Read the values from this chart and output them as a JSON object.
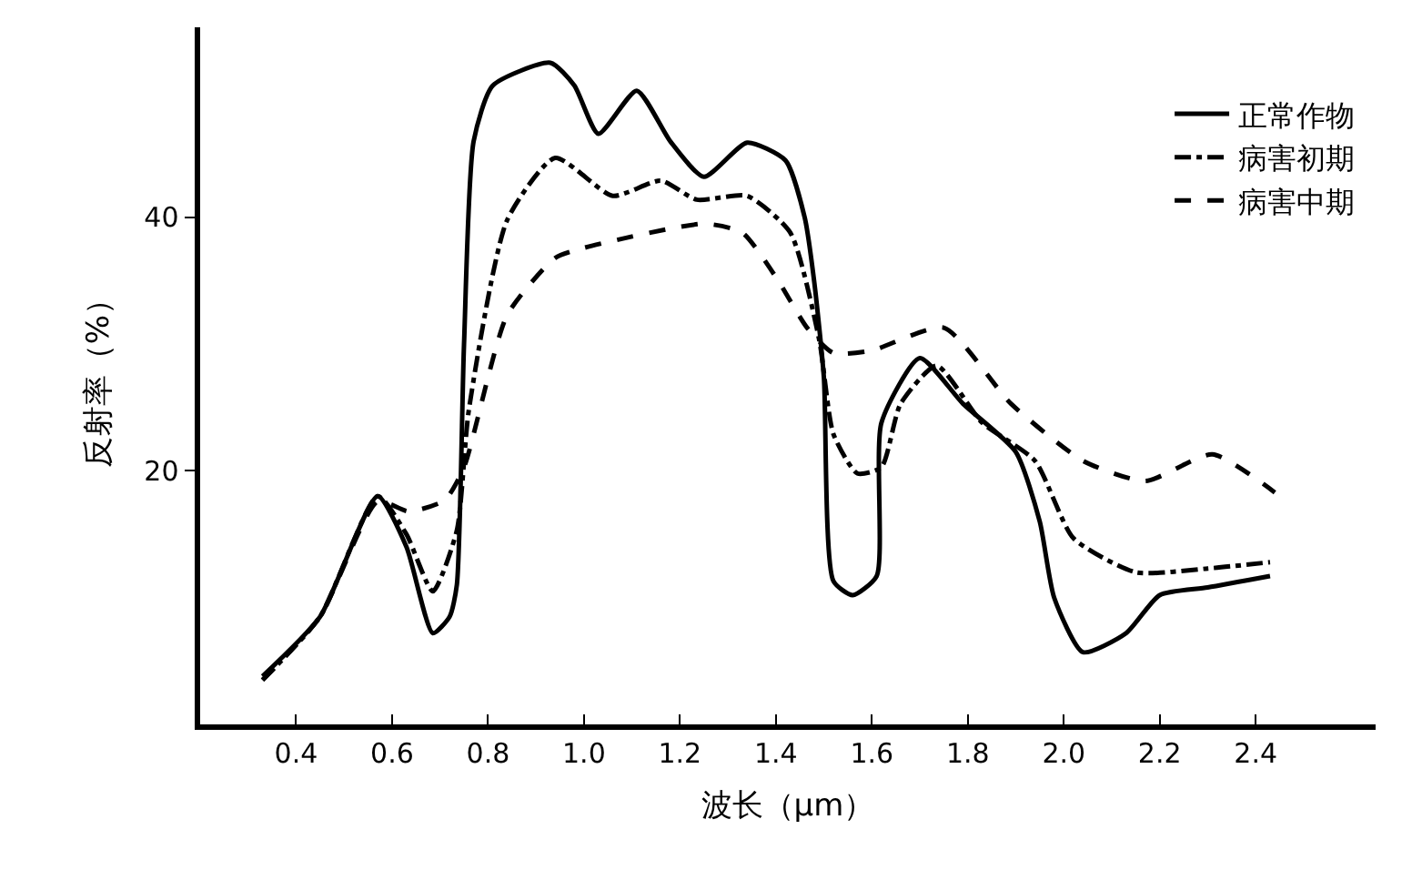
{
  "chart_data": {
    "type": "line",
    "xlabel": "波长（μm）",
    "ylabel": "反射率（%）",
    "xlim": [
      0.2,
      2.65
    ],
    "ylim": [
      0,
      55
    ],
    "xticks": [
      0.4,
      0.6,
      0.8,
      {
        "value": 1.0,
        "label": "1.0"
      },
      1.2,
      1.4,
      1.6,
      1.8,
      {
        "value": 2.0,
        "label": "2.0"
      },
      2.2,
      2.4
    ],
    "yticks": [
      20,
      40
    ],
    "legend": "top right",
    "marker": "none",
    "series": [
      {
        "name": "正常作物",
        "color": "#000000",
        "line_style": "solid",
        "x": [
          0.33,
          0.45,
          0.57,
          0.63,
          0.685,
          0.72,
          0.735,
          0.75,
          0.77,
          0.81,
          0.93,
          0.98,
          1.03,
          1.11,
          1.18,
          1.25,
          1.34,
          1.42,
          1.46,
          1.48,
          1.5,
          1.52,
          1.56,
          1.61,
          1.62,
          1.7,
          1.79,
          1.9,
          1.95,
          1.98,
          2.04,
          2.13,
          2.2,
          2.3,
          2.43
        ],
        "values": [
          3.8,
          8.5,
          18,
          14,
          7.2,
          8.5,
          11,
          30,
          46,
          50.4,
          52.2,
          50.4,
          46.6,
          50,
          46,
          43.2,
          45.9,
          44.5,
          40,
          34.9,
          27.4,
          11.3,
          10.2,
          11.7,
          23.8,
          28.9,
          25.3,
          21.5,
          16,
          10,
          5.7,
          7.2,
          10.2,
          10.8,
          11.7
        ]
      },
      {
        "name": "病害初期",
        "color": "#000000",
        "line_style": "dashdot",
        "x": [
          0.33,
          0.45,
          0.57,
          0.63,
          0.685,
          0.735,
          0.76,
          0.84,
          0.94,
          1.06,
          1.16,
          1.235,
          1.34,
          1.43,
          1.49,
          1.52,
          1.57,
          1.62,
          1.66,
          1.735,
          1.83,
          1.94,
          2.02,
          2.15,
          2.3,
          2.43
        ],
        "values": [
          3.5,
          8.5,
          18,
          15,
          10.5,
          15.3,
          24.8,
          39.8,
          44.7,
          41.7,
          42.9,
          41.4,
          41.7,
          38.8,
          30.4,
          22.9,
          19.8,
          20.3,
          25.3,
          28.3,
          23.8,
          20.8,
          14.7,
          12,
          12.3,
          12.8
        ]
      },
      {
        "name": "病害中期",
        "color": "#000000",
        "line_style": "dashed",
        "x": [
          0.33,
          0.45,
          0.57,
          0.635,
          0.71,
          0.75,
          0.84,
          0.94,
          1.0,
          1.25,
          1.33,
          1.4,
          1.465,
          1.52,
          1.6,
          1.75,
          1.89,
          2.04,
          2.17,
          2.31,
          2.44
        ],
        "values": [
          3.5,
          8.5,
          17.6,
          16.8,
          17.7,
          20.3,
          32.3,
          36.8,
          37.6,
          39.5,
          38.8,
          35.3,
          31.3,
          29.3,
          29.5,
          31.3,
          25.3,
          20.8,
          19.2,
          21.3,
          18.3
        ]
      }
    ]
  }
}
